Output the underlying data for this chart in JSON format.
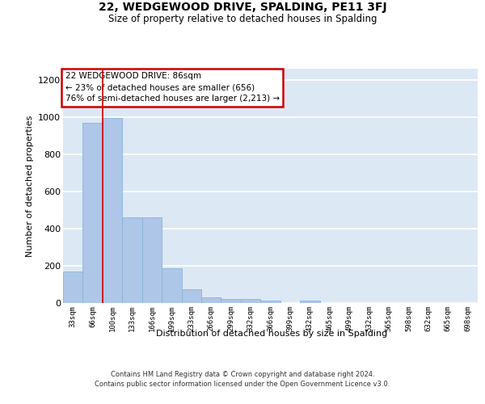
{
  "title": "22, WEDGEWOOD DRIVE, SPALDING, PE11 3FJ",
  "subtitle": "Size of property relative to detached houses in Spalding",
  "xlabel": "Distribution of detached houses by size in Spalding",
  "ylabel": "Number of detached properties",
  "categories": [
    "33sqm",
    "66sqm",
    "100sqm",
    "133sqm",
    "166sqm",
    "199sqm",
    "233sqm",
    "266sqm",
    "299sqm",
    "332sqm",
    "366sqm",
    "399sqm",
    "432sqm",
    "465sqm",
    "499sqm",
    "532sqm",
    "565sqm",
    "598sqm",
    "632sqm",
    "665sqm",
    "698sqm"
  ],
  "values": [
    170,
    970,
    997,
    462,
    462,
    185,
    75,
    30,
    22,
    20,
    11,
    0,
    14,
    0,
    0,
    0,
    0,
    0,
    0,
    0,
    0
  ],
  "bar_color": "#aec6e8",
  "bar_edge_color": "#8ab4d8",
  "background_color": "#dde8f5",
  "grid_color": "#ffffff",
  "vline_color": "#cc0000",
  "annotation_text": "22 WEDGEWOOD DRIVE: 86sqm\n← 23% of detached houses are smaller (656)\n76% of semi-detached houses are larger (2,213) →",
  "annotation_box_facecolor": "#ffffff",
  "annotation_box_edgecolor": "#cc0000",
  "ylim": [
    0,
    1260
  ],
  "yticks": [
    0,
    200,
    400,
    600,
    800,
    1000,
    1200
  ],
  "footer_line1": "Contains HM Land Registry data © Crown copyright and database right 2024.",
  "footer_line2": "Contains public sector information licensed under the Open Government Licence v3.0."
}
